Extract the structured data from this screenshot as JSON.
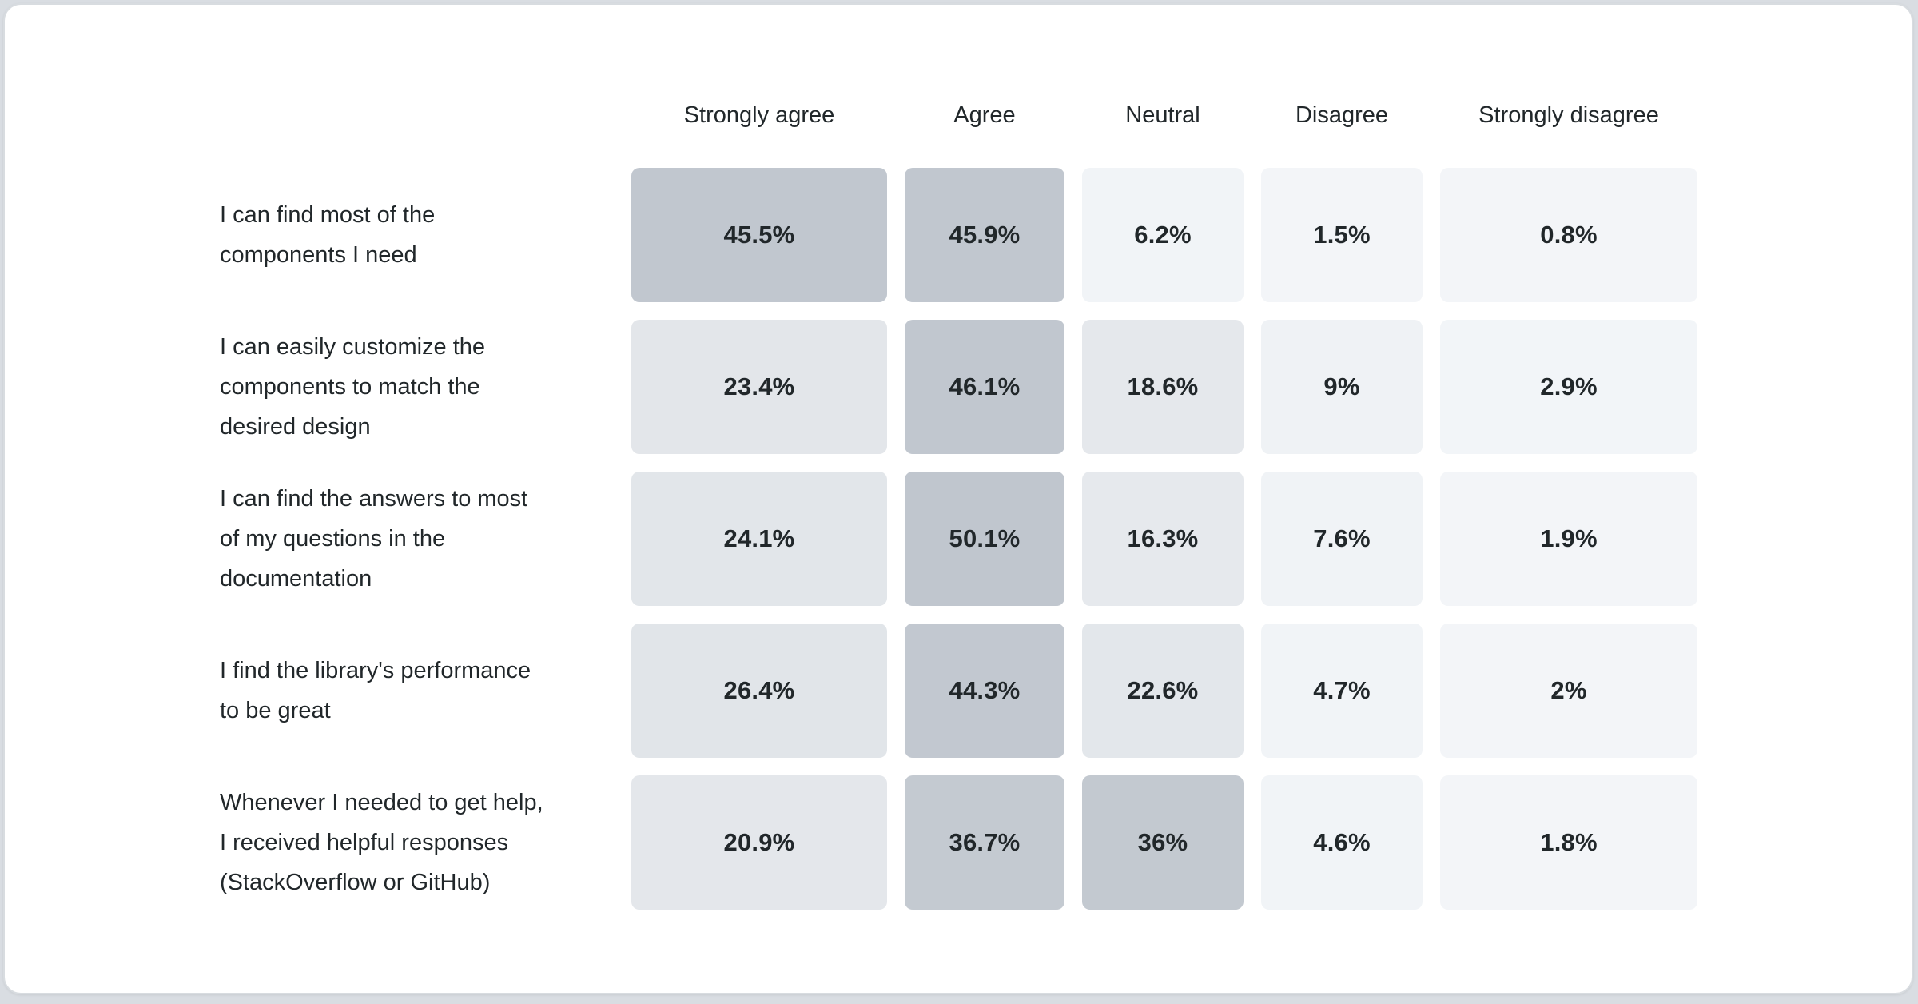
{
  "page": {
    "background": "#d9dde2",
    "card_background": "#ffffff",
    "card_border": "#d8dce0",
    "text_color": "#21272a"
  },
  "chart_data": {
    "type": "heatmap",
    "columns": [
      "Strongly agree",
      "Agree",
      "Neutral",
      "Disagree",
      "Strongly disagree"
    ],
    "rows": [
      {
        "label": "I can find most of the\ncomponents I need",
        "values": [
          45.5,
          45.9,
          6.2,
          1.5,
          0.8
        ],
        "display_values": [
          "45.5%",
          "45.9%",
          "6.2%",
          "1.5%",
          "0.8%"
        ],
        "cell_colors": [
          "#c1c7cf",
          "#c1c7cf",
          "#f1f4f7",
          "#f3f5f8",
          "#f3f5f8"
        ]
      },
      {
        "label": "I can easily customize the\ncomponents to match the\ndesired design",
        "values": [
          23.4,
          46.1,
          18.6,
          9,
          2.9
        ],
        "display_values": [
          "23.4%",
          "46.1%",
          "18.6%",
          "9%",
          "2.9%"
        ],
        "cell_colors": [
          "#e3e6ea",
          "#c1c7cf",
          "#e5e8ec",
          "#eff2f5",
          "#f2f5f8"
        ]
      },
      {
        "label": "I can find the answers to most\nof my questions in the\ndocumentation",
        "values": [
          24.1,
          50.1,
          16.3,
          7.6,
          1.9
        ],
        "display_values": [
          "24.1%",
          "50.1%",
          "16.3%",
          "7.6%",
          "1.9%"
        ],
        "cell_colors": [
          "#e2e6ea",
          "#c0c6ce",
          "#e6e9ed",
          "#f0f3f6",
          "#f3f5f8"
        ]
      },
      {
        "label": "I find the library's performance\nto be great",
        "values": [
          26.4,
          44.3,
          22.6,
          4.7,
          2
        ],
        "display_values": [
          "26.4%",
          "44.3%",
          "22.6%",
          "4.7%",
          "2%"
        ],
        "cell_colors": [
          "#e1e5e9",
          "#c2c8d0",
          "#e3e7eb",
          "#f1f4f7",
          "#f3f5f8"
        ]
      },
      {
        "label": "Whenever I needed to get help,\nI received helpful responses\n(StackOverflow or GitHub)",
        "values": [
          20.9,
          36.7,
          36,
          4.6,
          1.8
        ],
        "display_values": [
          "20.9%",
          "36.7%",
          "36%",
          "4.6%",
          "1.8%"
        ],
        "cell_colors": [
          "#e4e7eb",
          "#c4cad1",
          "#c3c9d0",
          "#f1f4f7",
          "#f3f5f8"
        ]
      }
    ],
    "scale": {
      "min_color": "#f3f5f8",
      "max_color": "#c0c6ce",
      "domain": [
        0,
        50.1
      ]
    },
    "legend_position": "none",
    "grid": false
  }
}
